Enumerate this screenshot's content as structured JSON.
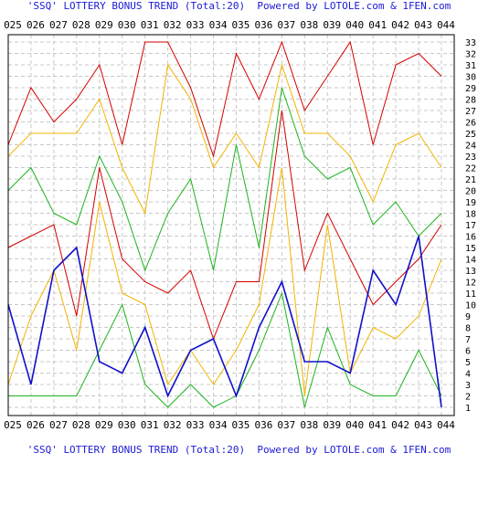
{
  "header": {
    "title": "'SSQ' LOTTERY BONUS TREND (Total:20)",
    "powered": "Powered by LOTOLE.com & 1FEN.com"
  },
  "footer": {
    "title": "'SSQ' LOTTERY BONUS TREND (Total:20)",
    "powered": "Powered by LOTOLE.com & 1FEN.com"
  },
  "chart_data": {
    "type": "line",
    "title": "'SSQ' LOTTERY BONUS TREND (Total:20)",
    "categories": [
      "025",
      "026",
      "027",
      "028",
      "029",
      "030",
      "031",
      "032",
      "033",
      "034",
      "035",
      "036",
      "037",
      "038",
      "039",
      "040",
      "041",
      "042",
      "043",
      "044"
    ],
    "ylim": [
      1,
      33
    ],
    "y_ticks": [
      1,
      2,
      3,
      4,
      5,
      6,
      7,
      8,
      9,
      10,
      11,
      12,
      13,
      14,
      15,
      16,
      17,
      18,
      19,
      20,
      21,
      22,
      23,
      24,
      25,
      26,
      27,
      28,
      29,
      30,
      31,
      32,
      33
    ],
    "grid": true,
    "series": [
      {
        "color": "#d40000",
        "width": 1,
        "values": [
          24,
          29,
          26,
          28,
          31,
          24,
          33,
          33,
          29,
          23,
          32,
          28,
          33,
          27,
          30,
          33,
          24,
          31,
          32,
          30
        ]
      },
      {
        "color": "#f2b400",
        "width": 1,
        "values": [
          23,
          25,
          25,
          25,
          28,
          22,
          18,
          31,
          28,
          22,
          25,
          22,
          31,
          25,
          25,
          23,
          19,
          24,
          25,
          22
        ]
      },
      {
        "color": "#1db31d",
        "width": 1,
        "values": [
          20,
          22,
          18,
          17,
          23,
          19,
          13,
          18,
          21,
          13,
          24,
          15,
          29,
          23,
          21,
          22,
          17,
          19,
          16,
          18
        ]
      },
      {
        "color": "#d40000",
        "width": 1,
        "values": [
          15,
          16,
          17,
          9,
          22,
          14,
          12,
          11,
          13,
          7,
          12,
          12,
          27,
          13,
          18,
          14,
          10,
          12,
          14,
          17
        ]
      },
      {
        "color": "#f2b400",
        "width": 1,
        "values": [
          3,
          9,
          13,
          6,
          19,
          11,
          10,
          3,
          6,
          3,
          6,
          10,
          22,
          2,
          17,
          4,
          8,
          7,
          9,
          14
        ]
      },
      {
        "color": "#1db31d",
        "width": 1,
        "values": [
          2,
          2,
          2,
          2,
          6,
          10,
          3,
          1,
          3,
          1,
          2,
          6,
          11,
          1,
          8,
          3,
          2,
          2,
          6,
          2
        ]
      },
      {
        "color": "#1010c8",
        "width": 1.6,
        "values": [
          10,
          3,
          13,
          15,
          5,
          4,
          8,
          2,
          6,
          7,
          2,
          8,
          12,
          5,
          5,
          4,
          13,
          10,
          16,
          1
        ]
      }
    ]
  }
}
